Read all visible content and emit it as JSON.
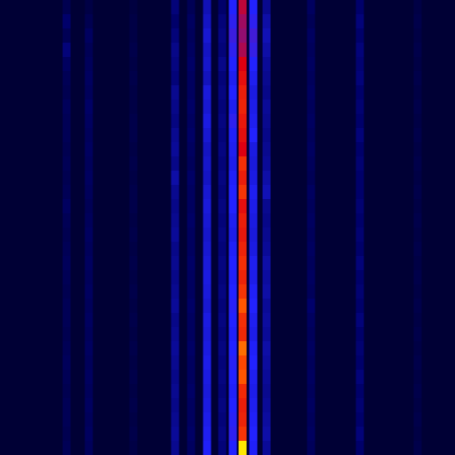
{
  "chart_data": {
    "type": "heatmap",
    "x": [
      75,
      100,
      150,
      197,
      215,
      233,
      250,
      262,
      273,
      285,
      300,
      350,
      405,
      470
    ],
    "y": [
      8,
      24,
      40,
      56,
      72,
      88,
      104,
      120,
      136,
      152,
      168,
      184,
      200,
      216,
      232,
      248,
      264,
      280,
      296,
      312,
      328,
      344,
      360,
      376,
      392,
      408,
      424,
      440,
      456,
      472,
      488,
      504
    ],
    "values": [
      [
        0.5,
        0.3,
        0.2,
        1.2,
        0.6,
        2.0,
        1.0,
        3.0,
        5.5,
        3.0,
        1.5,
        0.8,
        1.0,
        0.3
      ],
      [
        1.0,
        0.5,
        0.3,
        1.0,
        0.8,
        2.2,
        1.2,
        3.2,
        5.0,
        3.2,
        1.8,
        0.6,
        1.2,
        0.4
      ],
      [
        0.6,
        0.8,
        0.3,
        1.2,
        0.7,
        2.4,
        1.3,
        3.4,
        4.8,
        3.5,
        2.0,
        0.8,
        1.0,
        0.3
      ],
      [
        1.2,
        0.6,
        0.4,
        1.4,
        0.8,
        2.2,
        1.2,
        3.2,
        5.2,
        3.3,
        1.8,
        0.7,
        1.2,
        0.4
      ],
      [
        0.8,
        0.7,
        0.3,
        1.3,
        0.9,
        2.3,
        1.4,
        3.0,
        6.0,
        3.0,
        1.6,
        0.8,
        1.1,
        0.3
      ],
      [
        0.6,
        0.8,
        0.4,
        1.2,
        0.8,
        2.1,
        1.2,
        2.8,
        6.5,
        2.8,
        1.5,
        0.7,
        1.2,
        0.4
      ],
      [
        0.5,
        0.7,
        0.3,
        1.5,
        0.8,
        2.5,
        1.3,
        3.0,
        7.0,
        2.6,
        1.4,
        0.8,
        1.0,
        0.3
      ],
      [
        0.7,
        0.9,
        0.3,
        1.4,
        0.9,
        2.4,
        1.2,
        2.8,
        7.2,
        2.7,
        1.6,
        0.7,
        1.1,
        0.4
      ],
      [
        0.6,
        0.8,
        0.4,
        1.3,
        0.8,
        2.6,
        1.3,
        3.2,
        6.8,
        2.8,
        1.5,
        0.8,
        1.0,
        0.3
      ],
      [
        0.6,
        0.7,
        0.4,
        1.5,
        0.9,
        2.4,
        1.2,
        2.9,
        6.5,
        3.0,
        1.4,
        0.7,
        1.2,
        0.4
      ],
      [
        0.5,
        0.8,
        0.3,
        1.6,
        0.8,
        2.2,
        1.3,
        2.8,
        6.0,
        2.6,
        1.5,
        0.8,
        1.0,
        0.3
      ],
      [
        0.6,
        0.7,
        0.4,
        1.4,
        0.7,
        2.3,
        1.2,
        2.7,
        7.6,
        2.5,
        1.6,
        0.7,
        1.1,
        0.4
      ],
      [
        0.5,
        0.8,
        0.3,
        1.8,
        0.9,
        2.2,
        1.3,
        2.9,
        7.0,
        2.6,
        1.8,
        0.6,
        1.0,
        0.3
      ],
      [
        0.6,
        0.7,
        0.4,
        1.5,
        0.8,
        2.4,
        1.2,
        3.0,
        7.8,
        2.8,
        2.0,
        0.8,
        1.0,
        0.4
      ],
      [
        0.8,
        0.6,
        0.4,
        1.4,
        0.8,
        2.5,
        1.3,
        3.0,
        6.5,
        2.7,
        1.5,
        0.7,
        1.1,
        0.3
      ],
      [
        0.6,
        0.7,
        0.3,
        1.5,
        0.9,
        2.4,
        1.2,
        2.8,
        7.0,
        2.6,
        1.4,
        0.8,
        1.0,
        0.4
      ],
      [
        0.5,
        0.8,
        0.4,
        1.6,
        0.8,
        2.3,
        1.3,
        2.7,
        6.8,
        2.5,
        1.5,
        0.7,
        1.1,
        0.3
      ],
      [
        0.6,
        0.7,
        0.3,
        1.4,
        0.8,
        2.4,
        1.2,
        2.9,
        7.2,
        2.6,
        1.6,
        0.8,
        1.0,
        0.4
      ],
      [
        0.7,
        0.8,
        0.4,
        1.5,
        0.9,
        2.5,
        1.3,
        3.0,
        7.6,
        2.8,
        1.8,
        0.7,
        1.2,
        0.3
      ],
      [
        0.6,
        0.7,
        0.3,
        1.4,
        0.8,
        2.6,
        1.2,
        2.9,
        7.2,
        2.7,
        1.7,
        0.8,
        1.0,
        0.4
      ],
      [
        0.5,
        0.8,
        0.4,
        1.5,
        0.8,
        2.5,
        1.3,
        3.0,
        7.8,
        2.9,
        1.8,
        0.7,
        1.1,
        0.3
      ],
      [
        0.6,
        0.7,
        0.3,
        1.6,
        0.9,
        2.4,
        1.2,
        3.1,
        8.6,
        3.0,
        1.6,
        1.0,
        1.0,
        0.4
      ],
      [
        0.6,
        0.8,
        0.4,
        1.4,
        0.8,
        2.6,
        1.3,
        3.0,
        7.6,
        2.8,
        1.7,
        0.8,
        1.2,
        0.3
      ],
      [
        0.5,
        0.7,
        0.3,
        1.5,
        0.8,
        2.5,
        1.2,
        2.9,
        7.4,
        2.7,
        1.6,
        0.7,
        1.0,
        0.4
      ],
      [
        0.6,
        0.8,
        0.4,
        1.6,
        0.9,
        2.6,
        1.3,
        3.0,
        8.8,
        2.9,
        1.8,
        0.8,
        1.1,
        0.3
      ],
      [
        0.7,
        0.7,
        0.3,
        1.5,
        0.8,
        2.7,
        1.2,
        3.1,
        8.4,
        3.0,
        1.7,
        0.7,
        1.0,
        0.4
      ],
      [
        0.6,
        0.8,
        0.4,
        1.4,
        0.8,
        2.6,
        1.3,
        3.0,
        8.6,
        2.8,
        1.6,
        0.8,
        1.2,
        0.3
      ],
      [
        0.5,
        0.7,
        0.3,
        1.5,
        0.9,
        2.5,
        1.2,
        2.9,
        7.4,
        2.7,
        1.5,
        0.7,
        1.0,
        0.4
      ],
      [
        0.6,
        0.8,
        0.4,
        1.4,
        0.8,
        2.6,
        1.3,
        3.0,
        7.0,
        2.8,
        1.6,
        0.8,
        1.1,
        0.3
      ],
      [
        0.6,
        0.7,
        0.3,
        1.5,
        0.8,
        2.7,
        1.2,
        3.1,
        7.2,
        2.9,
        1.7,
        0.7,
        1.0,
        0.4
      ],
      [
        0.5,
        0.8,
        0.4,
        1.6,
        0.9,
        2.8,
        1.3,
        3.2,
        7.8,
        3.0,
        1.8,
        0.8,
        1.2,
        0.3
      ],
      [
        0.6,
        0.7,
        0.3,
        1.5,
        0.8,
        2.9,
        1.2,
        3.0,
        9.8,
        2.9,
        1.6,
        0.7,
        1.0,
        0.4
      ]
    ],
    "xlim": [
      0,
      512
    ],
    "ylim": [
      0,
      512
    ],
    "zlim": [
      0,
      10
    ],
    "tick_labels": false
  }
}
